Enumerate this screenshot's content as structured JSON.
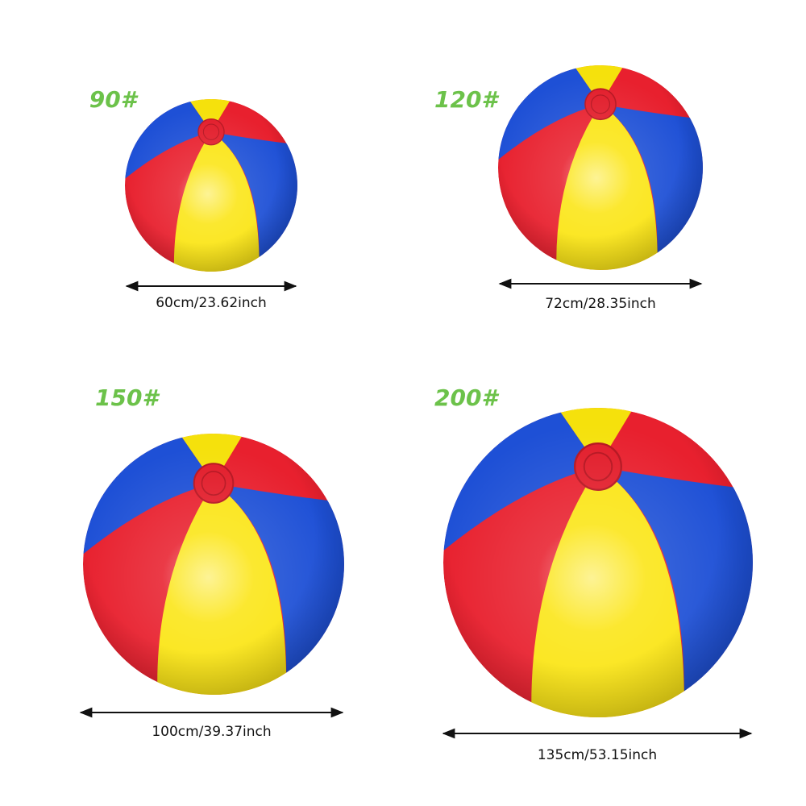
{
  "items": [
    {
      "label": "90#",
      "dimension": "60cm/23.62inch"
    },
    {
      "label": "120#",
      "dimension": "72cm/28.35inch"
    },
    {
      "label": "150#",
      "dimension": "100cm/39.37inch"
    },
    {
      "label": "200#",
      "dimension": "135cm/53.15inch"
    }
  ]
}
